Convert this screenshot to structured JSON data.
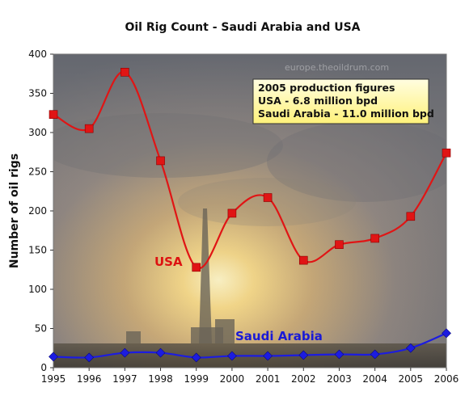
{
  "chart_data": {
    "type": "line",
    "title": "Oil Rig Count - Saudi Arabia and USA",
    "ylabel": "Number of oil rigs",
    "xlabel": "",
    "x": [
      1995,
      1996,
      1997,
      1998,
      1999,
      2000,
      2001,
      2002,
      2003,
      2004,
      2005,
      2006
    ],
    "ylim": [
      0,
      400
    ],
    "yticks": [
      0,
      50,
      100,
      150,
      200,
      250,
      300,
      350,
      400
    ],
    "grid": false,
    "series": [
      {
        "name": "USA",
        "color": "#e01515",
        "marker": "square",
        "values": [
          323,
          305,
          377,
          264,
          128,
          197,
          217,
          137,
          157,
          165,
          193,
          274
        ]
      },
      {
        "name": "Saudi Arabia",
        "color": "#1c1ce0",
        "marker": "diamond",
        "values": [
          14,
          13,
          19,
          19,
          13,
          15,
          15,
          16,
          17,
          17,
          25,
          44
        ]
      }
    ],
    "annotation": {
      "lines": [
        "2005 production figures",
        "USA - 6.8 million bpd",
        "Saudi Arabia - 11.0 million bpd"
      ]
    },
    "watermark": "europe.theoildrum.com"
  }
}
